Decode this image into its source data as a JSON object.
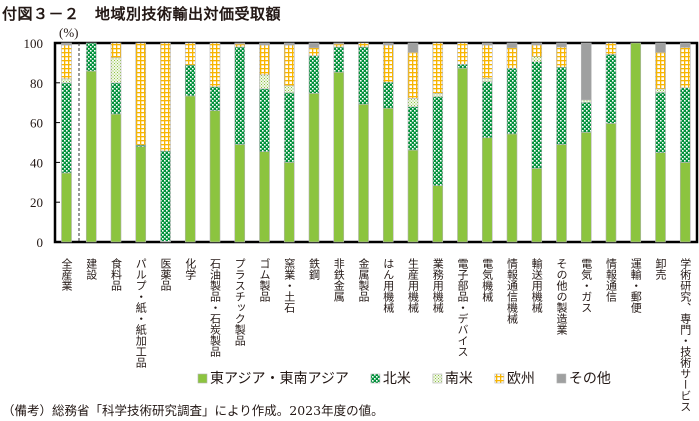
{
  "title": "付図３－２　地域別技術輸出対価受取額",
  "note": "（備考）総務省「科学技術研究調査」により作成。2023年度の値。",
  "chart_data": {
    "type": "bar",
    "stacked": true,
    "title": "付図３－２　地域別技術輸出対価受取額",
    "xlabel": "",
    "ylabel": "(%)",
    "ylim": [
      0,
      100
    ],
    "yticks": [
      0,
      20,
      40,
      60,
      80,
      100
    ],
    "grid": false,
    "legend_position": "bottom",
    "categories": [
      "全産業",
      "建設",
      "食料品",
      "パルプ・紙・紙加工品",
      "医薬品",
      "化学",
      "石油製品・石炭製品",
      "プラスチック製品",
      "ゴム製品",
      "窯業・土石",
      "鉄鋼",
      "非鉄金属",
      "金属製品",
      "はん用機械",
      "生産用機械",
      "業務用機械",
      "電子部品・デバイス",
      "電気機械",
      "情報通信機械",
      "輸送用機械",
      "その他の製造業",
      "電気・ガス",
      "情報通信",
      "運輸・郵便",
      "卸売",
      "学術研究、専門・技術サービス"
    ],
    "series": [
      {
        "name": "東アジア・東南アジア",
        "color": "#8cc43f",
        "pattern": "solid",
        "values": [
          34.7,
          85.9,
          64.3,
          47.9,
          0.3,
          73.4,
          66.0,
          49.0,
          45.4,
          40.0,
          74.7,
          85.3,
          69.2,
          67.2,
          46.2,
          28.3,
          87.3,
          52.4,
          54.3,
          37.0,
          49.0,
          55.1,
          59.6,
          100.0,
          44.9,
          40.0
        ]
      },
      {
        "name": "北米",
        "color": "#00913a",
        "pattern": "dots",
        "values": [
          45.3,
          14.1,
          15.7,
          0.8,
          45.4,
          15.5,
          12.0,
          49.0,
          31.6,
          35.0,
          18.9,
          12.7,
          28.8,
          13.1,
          21.8,
          44.7,
          2.0,
          28.2,
          33.0,
          53.6,
          38.8,
          15.1,
          34.7,
          0.0,
          30.3,
          37.5
        ]
      },
      {
        "name": "南米",
        "color": "#c8e0a8",
        "pattern": "speckle",
        "values": [
          2.0,
          0.0,
          12.6,
          0.0,
          0.0,
          0.0,
          0.0,
          0.0,
          7.0,
          3.5,
          0.0,
          0.0,
          0.0,
          0.0,
          4.2,
          1.7,
          0.0,
          1.6,
          0.0,
          2.5,
          0.0,
          1.2,
          0.0,
          0.0,
          1.7,
          0.0
        ]
      },
      {
        "name": "欧州",
        "color": "#f8b500",
        "pattern": "grid",
        "values": [
          17.0,
          0.0,
          7.4,
          51.3,
          54.3,
          11.1,
          22.0,
          1.5,
          15.0,
          20.5,
          4.0,
          1.5,
          2.0,
          18.7,
          23.1,
          25.3,
          10.7,
          16.8,
          10.3,
          5.9,
          10.2,
          0.0,
          5.7,
          0.0,
          18.4,
          20.3
        ]
      },
      {
        "name": "その他",
        "color": "#9fa0a0",
        "pattern": "solid",
        "values": [
          1.0,
          0.0,
          0.0,
          0.0,
          0.0,
          0.0,
          0.0,
          0.5,
          1.0,
          1.0,
          2.4,
          0.5,
          0.0,
          1.0,
          4.7,
          0.0,
          0.0,
          1.0,
          2.4,
          1.0,
          2.0,
          28.6,
          0.0,
          0.0,
          4.7,
          2.2
        ]
      }
    ]
  }
}
